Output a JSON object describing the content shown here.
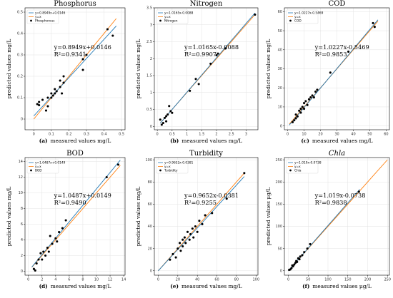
{
  "figure": {
    "ylabel": "predicted values mg/L",
    "fit_color": "#1f77b4",
    "ideal_color": "#ff7f0e",
    "point_color": "#000000"
  },
  "chart_data": [
    {
      "type": "scatter",
      "panel_label": "(a)",
      "title": "Phosphorus",
      "title_italic": false,
      "xlabel": "measured values mg/L",
      "ylabel": "predicted values mg/L",
      "xlim": [
        -0.05,
        0.52
      ],
      "ylim": [
        -0.05,
        0.52
      ],
      "xticks": [
        0.0,
        0.1,
        0.2,
        0.3,
        0.4,
        0.5
      ],
      "yticks": [
        0.0,
        0.1,
        0.2,
        0.3,
        0.4,
        0.5
      ],
      "grid": true,
      "legend_position": "top-left",
      "legend": [
        "y=0.8949x+0.0146",
        "y=x",
        "Phosphorous"
      ],
      "annotation": [
        "y=0.8949x+0.0146",
        "R²=0.9341"
      ],
      "fit": {
        "slope": 0.8949,
        "intercept": 0.0146,
        "x_range": [
          0.0,
          0.47
        ]
      },
      "ideal_range": [
        0.0,
        0.47
      ],
      "points": [
        [
          0.02,
          0.07
        ],
        [
          0.03,
          0.065
        ],
        [
          0.03,
          0.08
        ],
        [
          0.05,
          0.09
        ],
        [
          0.07,
          0.04
        ],
        [
          0.08,
          0.06
        ],
        [
          0.08,
          0.1
        ],
        [
          0.1,
          0.1
        ],
        [
          0.1,
          0.12
        ],
        [
          0.11,
          0.11
        ],
        [
          0.12,
          0.12
        ],
        [
          0.12,
          0.14
        ],
        [
          0.13,
          0.13
        ],
        [
          0.15,
          0.15
        ],
        [
          0.15,
          0.18
        ],
        [
          0.16,
          0.12
        ],
        [
          0.17,
          0.17
        ],
        [
          0.17,
          0.2
        ],
        [
          0.28,
          0.23
        ],
        [
          0.28,
          0.28
        ],
        [
          0.3,
          0.3
        ],
        [
          0.42,
          0.42
        ],
        [
          0.45,
          0.39
        ]
      ]
    },
    {
      "type": "scatter",
      "panel_label": "(b)",
      "title": "Nitrogen",
      "title_italic": false,
      "xlabel": "measured values mg/L",
      "ylabel": "predicted values mg/L",
      "xlim": [
        -0.1,
        3.4
      ],
      "ylim": [
        -0.1,
        3.5
      ],
      "xticks": [
        0.0,
        0.5,
        1.0,
        1.5,
        2.0,
        2.5,
        3.0
      ],
      "yticks": [
        0.0,
        0.5,
        1.0,
        1.5,
        2.0,
        2.5,
        3.0,
        3.5
      ],
      "grid": true,
      "legend_position": "top-left",
      "legend": [
        "y=1.0165x-0.0088",
        "y=x",
        "Nitrogen"
      ],
      "annotation": [
        "y=1.0165x-0.0088",
        "R²=0.9907"
      ],
      "fit": {
        "slope": 1.0165,
        "intercept": -0.0088,
        "x_range": [
          0.1,
          3.3
        ]
      },
      "ideal_range": [
        0.1,
        3.3
      ],
      "points": [
        [
          0.1,
          0.2
        ],
        [
          0.15,
          0.05
        ],
        [
          0.2,
          0.1
        ],
        [
          0.25,
          0.25
        ],
        [
          0.3,
          0.15
        ],
        [
          0.3,
          0.3
        ],
        [
          0.35,
          0.35
        ],
        [
          0.4,
          0.6
        ],
        [
          0.45,
          0.45
        ],
        [
          0.5,
          0.4
        ],
        [
          1.1,
          1.05
        ],
        [
          1.3,
          1.4
        ],
        [
          1.4,
          1.25
        ],
        [
          1.8,
          1.85
        ],
        [
          2.0,
          2.1
        ],
        [
          2.05,
          2.15
        ],
        [
          2.3,
          2.3
        ],
        [
          3.3,
          3.3
        ]
      ]
    },
    {
      "type": "scatter",
      "panel_label": "(c)",
      "title": "COD",
      "title_italic": false,
      "xlabel": "measured values mg/L",
      "ylabel": "predicted values mg/L",
      "xlim": [
        -2,
        62
      ],
      "ylim": [
        -2,
        62
      ],
      "xticks": [
        0,
        10,
        20,
        30,
        40,
        50,
        60
      ],
      "yticks": [
        0,
        10,
        20,
        30,
        40,
        50,
        60
      ],
      "grid": true,
      "legend_position": "top-left",
      "legend": [
        "y=1.0227x-0.5469",
        "y=x",
        "COD"
      ],
      "annotation": [
        "y=1.0227x-0.5469",
        "R²=0.9853"
      ],
      "fit": {
        "slope": 1.0227,
        "intercept": -0.5469,
        "x_range": [
          1,
          55
        ]
      },
      "ideal_range": [
        1,
        55
      ],
      "points": [
        [
          3,
          2
        ],
        [
          4,
          3
        ],
        [
          5,
          4
        ],
        [
          5,
          6
        ],
        [
          6,
          5
        ],
        [
          7,
          8
        ],
        [
          8,
          7
        ],
        [
          8,
          9
        ],
        [
          9,
          10
        ],
        [
          10,
          9
        ],
        [
          10,
          12
        ],
        [
          11,
          13
        ],
        [
          12,
          11
        ],
        [
          13,
          14
        ],
        [
          14,
          15
        ],
        [
          15,
          16
        ],
        [
          16,
          15
        ],
        [
          17,
          18
        ],
        [
          18,
          19
        ],
        [
          26,
          28
        ],
        [
          37,
          39
        ],
        [
          52,
          54
        ],
        [
          53,
          52
        ]
      ]
    },
    {
      "type": "scatter",
      "panel_label": "(d)",
      "title": "BOD",
      "title_italic": false,
      "xlabel": "measured values mg/L",
      "ylabel": "predicted values mg/L",
      "xlim": [
        -0.5,
        14.2
      ],
      "ylim": [
        -0.5,
        14.5
      ],
      "xticks": [
        0,
        2,
        4,
        6,
        8,
        10,
        12,
        14
      ],
      "yticks": [
        0,
        2,
        4,
        6,
        8,
        10,
        12,
        14
      ],
      "grid": true,
      "legend_position": "top-left",
      "legend": [
        "y=1.0487x+0.0149",
        "y=x",
        "BOD"
      ],
      "annotation": [
        "y=1.0487x+0.0149",
        "R²=0.9490"
      ],
      "fit": {
        "slope": 1.0487,
        "intercept": 0.0149,
        "x_range": [
          0.5,
          13.5
        ]
      },
      "ideal_range": [
        0.5,
        13.5
      ],
      "points": [
        [
          0.8,
          0.3
        ],
        [
          1.0,
          0.1
        ],
        [
          1.2,
          1.0
        ],
        [
          1.5,
          1.5
        ],
        [
          1.8,
          2.3
        ],
        [
          2.0,
          1.5
        ],
        [
          2.2,
          2.5
        ],
        [
          2.5,
          2.0
        ],
        [
          2.8,
          3.0
        ],
        [
          3.0,
          2.5
        ],
        [
          3.2,
          4.5
        ],
        [
          3.5,
          3.5
        ],
        [
          4.0,
          4.2
        ],
        [
          4.2,
          3.8
        ],
        [
          4.5,
          5.0
        ],
        [
          5.0,
          5.5
        ],
        [
          5.5,
          6.5
        ],
        [
          11.5,
          12.0
        ],
        [
          13.2,
          13.6
        ]
      ]
    },
    {
      "type": "scatter",
      "panel_label": "(e)",
      "title": "Turbidity",
      "title_italic": false,
      "xlabel": "measured values mg/L",
      "ylabel": "predicted values mg/L",
      "xlim": [
        -4,
        102
      ],
      "ylim": [
        -4,
        102
      ],
      "xticks": [
        0,
        20,
        40,
        60,
        80,
        100
      ],
      "yticks": [
        0,
        20,
        40,
        60,
        80,
        100
      ],
      "grid": true,
      "legend_position": "top-left",
      "legend": [
        "y=0.9652x-0.0381",
        "y=x",
        "Turbidity"
      ],
      "annotation": [
        "y=0.9652x-0.0381",
        "R²=0.9255"
      ],
      "fit": {
        "slope": 0.9652,
        "intercept": -0.0381,
        "x_range": [
          0,
          88
        ]
      },
      "ideal_range": [
        0,
        88
      ],
      "points": [
        [
          12,
          10
        ],
        [
          15,
          15
        ],
        [
          18,
          12
        ],
        [
          20,
          20
        ],
        [
          22,
          25
        ],
        [
          23,
          18
        ],
        [
          25,
          22
        ],
        [
          25,
          28
        ],
        [
          27,
          30
        ],
        [
          28,
          25
        ],
        [
          30,
          35
        ],
        [
          32,
          28
        ],
        [
          33,
          33
        ],
        [
          35,
          38
        ],
        [
          36,
          30
        ],
        [
          38,
          40
        ],
        [
          40,
          35
        ],
        [
          42,
          45
        ],
        [
          45,
          42
        ],
        [
          48,
          50
        ],
        [
          55,
          52
        ],
        [
          70,
          65
        ],
        [
          88,
          88
        ]
      ]
    },
    {
      "type": "scatter",
      "panel_label": "(f)",
      "title": "Chla",
      "title_italic": true,
      "xlabel": "measured values μg/L",
      "ylabel": "predicted values μg/L",
      "xlim": [
        -10,
        255
      ],
      "ylim": [
        -10,
        255
      ],
      "xticks": [
        0,
        50,
        100,
        150,
        200,
        250
      ],
      "yticks": [
        0,
        50,
        100,
        150,
        200,
        250
      ],
      "grid": true,
      "legend_position": "top-left",
      "legend": [
        "y=1.019x-0.0738",
        "y=x",
        "Chla"
      ],
      "annotation": [
        "y=1.019x-0.0738",
        "R²=0.9838"
      ],
      "fit": {
        "slope": 1.019,
        "intercept": -0.0738,
        "x_range": [
          0,
          180
        ]
      },
      "ideal_range": [
        0,
        250
      ],
      "points": [
        [
          2,
          2
        ],
        [
          5,
          3
        ],
        [
          8,
          6
        ],
        [
          10,
          12
        ],
        [
          12,
          10
        ],
        [
          15,
          14
        ],
        [
          18,
          18
        ],
        [
          20,
          22
        ],
        [
          22,
          20
        ],
        [
          25,
          28
        ],
        [
          28,
          26
        ],
        [
          30,
          32
        ],
        [
          35,
          35
        ],
        [
          40,
          42
        ],
        [
          48,
          50
        ],
        [
          55,
          60
        ],
        [
          178,
          178
        ]
      ]
    }
  ]
}
